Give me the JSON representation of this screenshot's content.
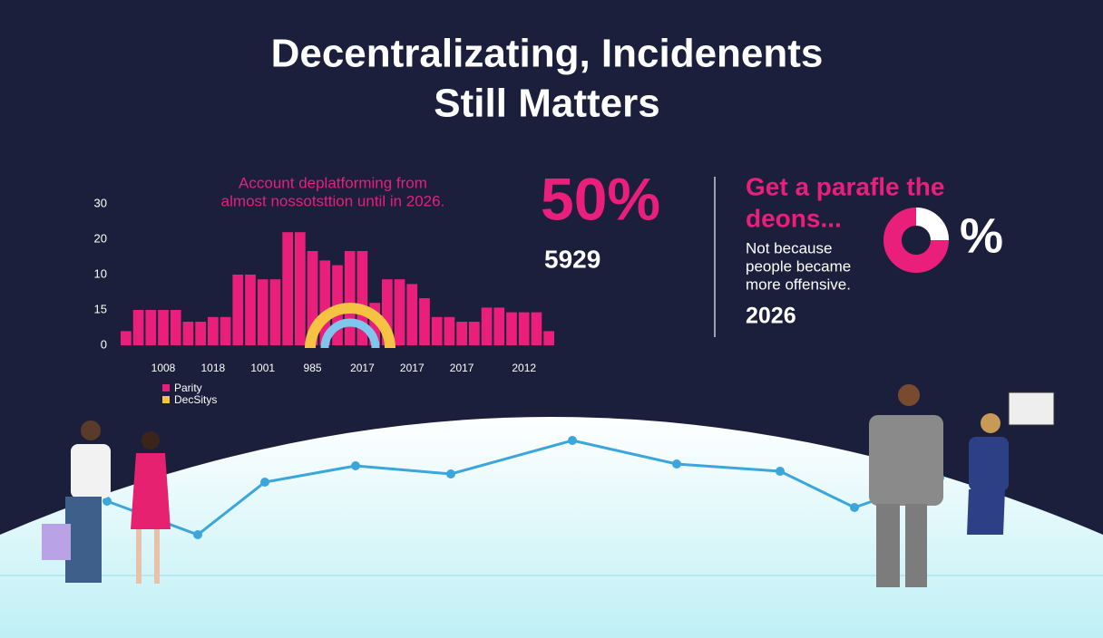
{
  "title_lines": [
    "Decentralizating, Incidenents",
    "Still Matters"
  ],
  "chart_data": {
    "type": "bar",
    "annotation": [
      "Account deplatforming from",
      "almost nossotsttion until in 2026."
    ],
    "y_labels": [
      "30",
      "20",
      "10",
      "15",
      "0"
    ],
    "ylim": [
      0,
      30
    ],
    "categories": [
      null,
      null,
      null,
      "1008",
      null,
      null,
      null,
      "1018",
      null,
      null,
      null,
      "1001",
      null,
      null,
      null,
      "985",
      null,
      null,
      null,
      "2017",
      null,
      null,
      null,
      "2017",
      null,
      null,
      null,
      "2017",
      null,
      null,
      null,
      null,
      "2012",
      null,
      null
    ],
    "values": [
      3,
      7.5,
      7.5,
      7.5,
      7.5,
      5,
      5,
      6,
      6,
      15,
      15,
      14,
      14,
      24,
      24,
      20,
      18,
      17,
      20,
      20,
      9,
      14,
      14,
      13,
      10,
      6,
      6,
      5,
      5,
      8,
      8,
      7,
      7,
      7,
      3
    ],
    "color": "#ea1f7b",
    "legend": [
      {
        "name": "Parity",
        "color": "#ea1f7b"
      },
      {
        "name": "DecSitys",
        "color": "#f5c242"
      }
    ]
  },
  "stats": {
    "headline": "50%",
    "figure": "5929"
  },
  "panel": {
    "heading": [
      "Get a parafle the",
      "deons..."
    ],
    "symbol": "%",
    "body": [
      "Not because",
      "people became",
      "more offensive."
    ],
    "year": "2026"
  }
}
